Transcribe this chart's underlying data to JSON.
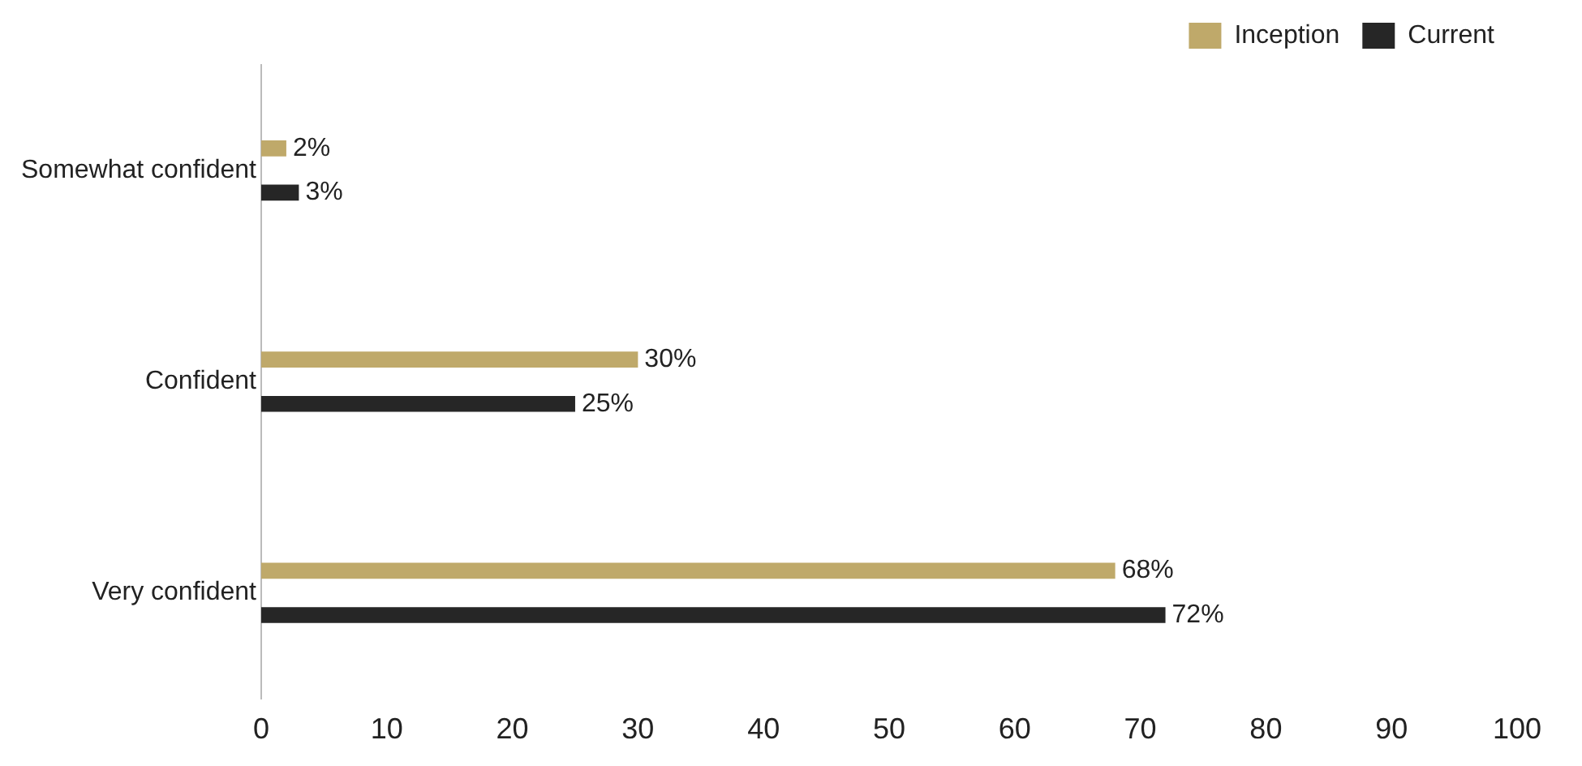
{
  "chart_data": {
    "type": "bar",
    "orientation": "horizontal",
    "categories": [
      "Somewhat confident",
      "Confident",
      "Very confident"
    ],
    "series": [
      {
        "name": "Inception",
        "color": "#bfa96a",
        "values": [
          2,
          30,
          68
        ],
        "value_labels": [
          "2%",
          "30%",
          "68%"
        ]
      },
      {
        "name": "Current",
        "color": "#262626",
        "values": [
          3,
          25,
          72
        ],
        "value_labels": [
          "3%",
          "25%",
          "72%"
        ]
      }
    ],
    "xlim": [
      0,
      100
    ],
    "xticks": [
      0,
      10,
      20,
      30,
      40,
      50,
      60,
      70,
      80,
      90,
      100
    ],
    "grid": false,
    "legend": "top right"
  }
}
